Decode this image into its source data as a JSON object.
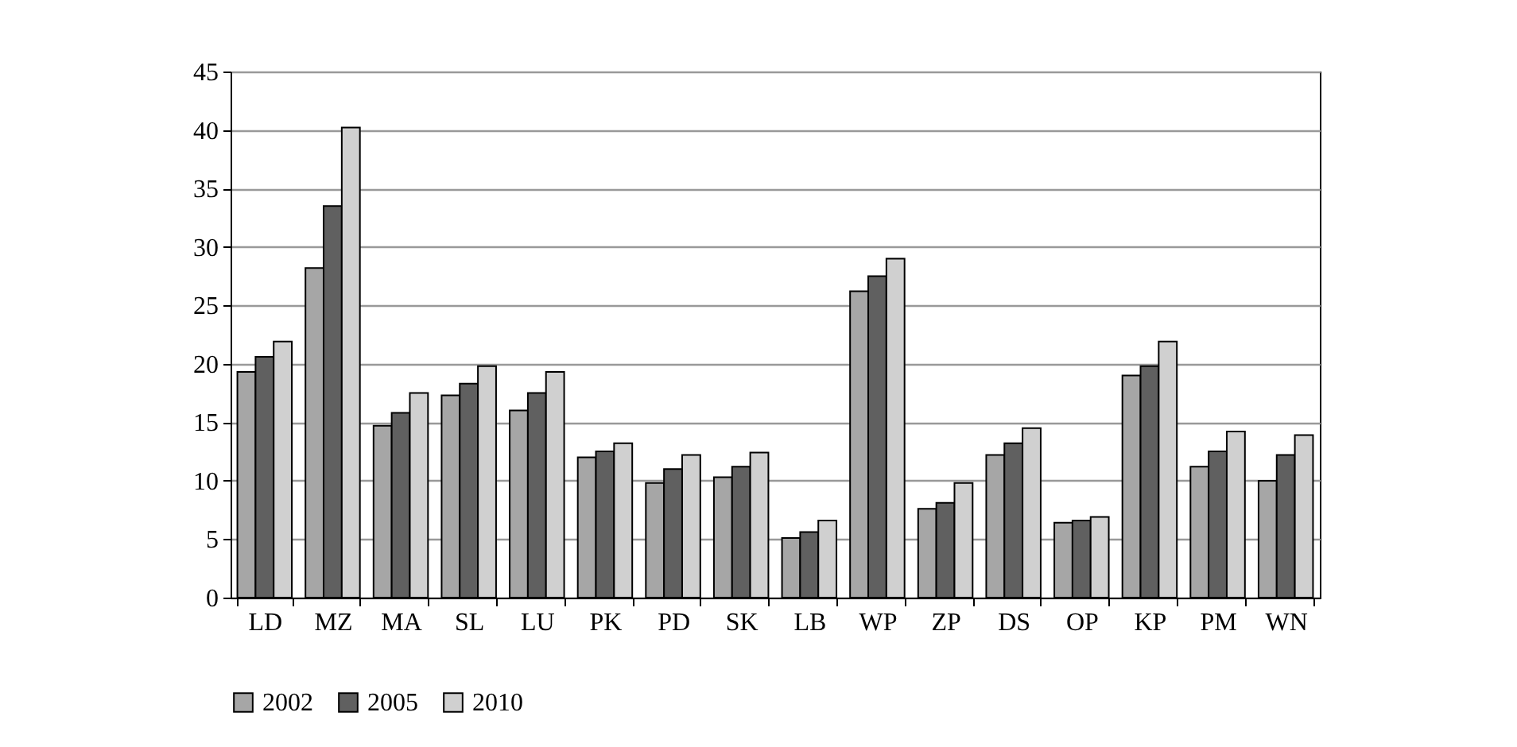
{
  "chart_data": {
    "type": "bar",
    "categories": [
      "LD",
      "MZ",
      "MA",
      "SL",
      "LU",
      "PK",
      "PD",
      "SK",
      "LB",
      "WP",
      "ZP",
      "DS",
      "OP",
      "KP",
      "PM",
      "WN"
    ],
    "series": [
      {
        "name": "2002",
        "color": "#a6a6a6",
        "values": [
          19.3,
          28.2,
          14.7,
          17.3,
          16.0,
          12.0,
          9.8,
          10.3,
          5.1,
          26.2,
          7.6,
          12.2,
          6.4,
          19.0,
          11.2,
          10.0
        ]
      },
      {
        "name": "2005",
        "color": "#606060",
        "values": [
          20.6,
          33.5,
          15.8,
          18.3,
          17.5,
          12.5,
          11.0,
          11.2,
          5.6,
          27.5,
          8.1,
          13.2,
          6.6,
          19.8,
          12.5,
          12.2
        ]
      },
      {
        "name": "2010",
        "color": "#d0d0d0",
        "values": [
          21.9,
          40.2,
          17.5,
          19.8,
          19.3,
          13.2,
          12.2,
          12.4,
          6.6,
          29.0,
          9.8,
          14.5,
          6.9,
          21.9,
          14.2,
          13.9
        ]
      }
    ],
    "ylim": [
      0,
      45
    ],
    "yticks": [
      0,
      5,
      10,
      15,
      20,
      25,
      30,
      35,
      40,
      45
    ],
    "grid": "y",
    "legend": "bottom"
  }
}
